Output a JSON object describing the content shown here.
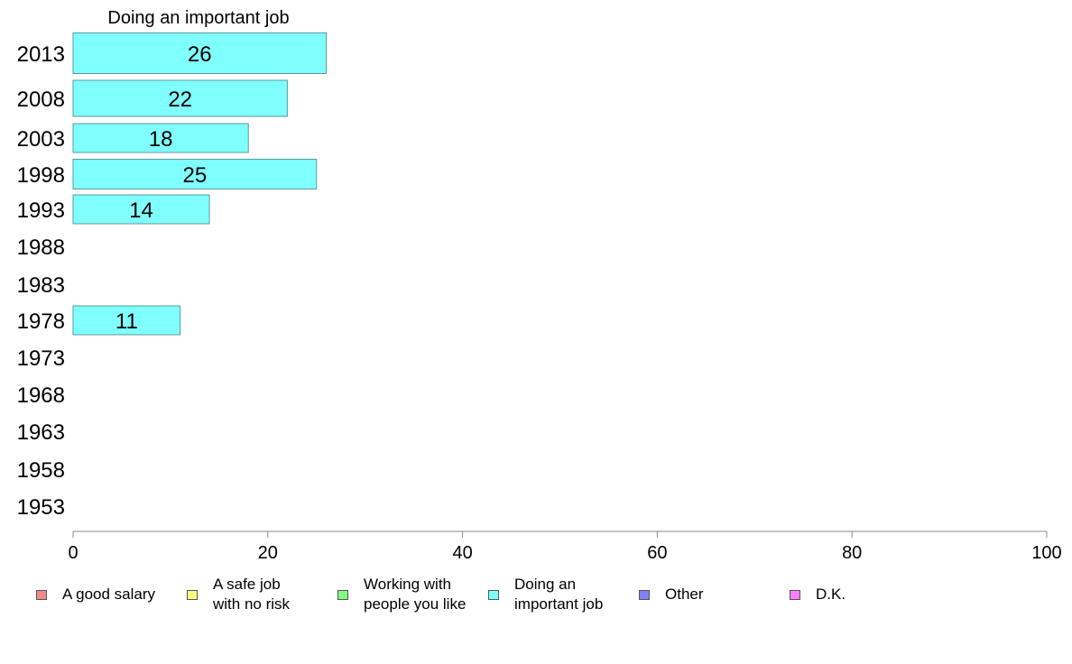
{
  "chart_data": {
    "type": "bar",
    "orientation": "horizontal",
    "title": "Doing an important job",
    "categories": [
      "2013",
      "2008",
      "2003",
      "1998",
      "1993",
      "1988",
      "1983",
      "1978",
      "1973",
      "1968",
      "1963",
      "1958",
      "1953"
    ],
    "values": [
      26,
      22,
      18,
      25,
      14,
      null,
      null,
      11,
      null,
      null,
      null,
      null,
      null
    ],
    "value_labels": [
      "26",
      "22",
      "18",
      "25",
      "14",
      "",
      "",
      "11",
      "",
      "",
      "",
      "",
      ""
    ],
    "bar_color": "#80ffff",
    "xlim": [
      0,
      100
    ],
    "xticks": [
      "0",
      "20",
      "40",
      "60",
      "80",
      "100"
    ],
    "grid": false,
    "legend_position": "bottom",
    "legend": [
      {
        "label": "A good salary",
        "color": "#f28a8a"
      },
      {
        "label": "A safe job\nwith no risk",
        "color": "#ffff80"
      },
      {
        "label": "Working with\npeople you like",
        "color": "#80ff80"
      },
      {
        "label": "Doing an\nimportant job",
        "color": "#80ffff"
      },
      {
        "label": "Other",
        "color": "#8080ff"
      },
      {
        "label": "D.K.",
        "color": "#ff80ff"
      }
    ]
  }
}
